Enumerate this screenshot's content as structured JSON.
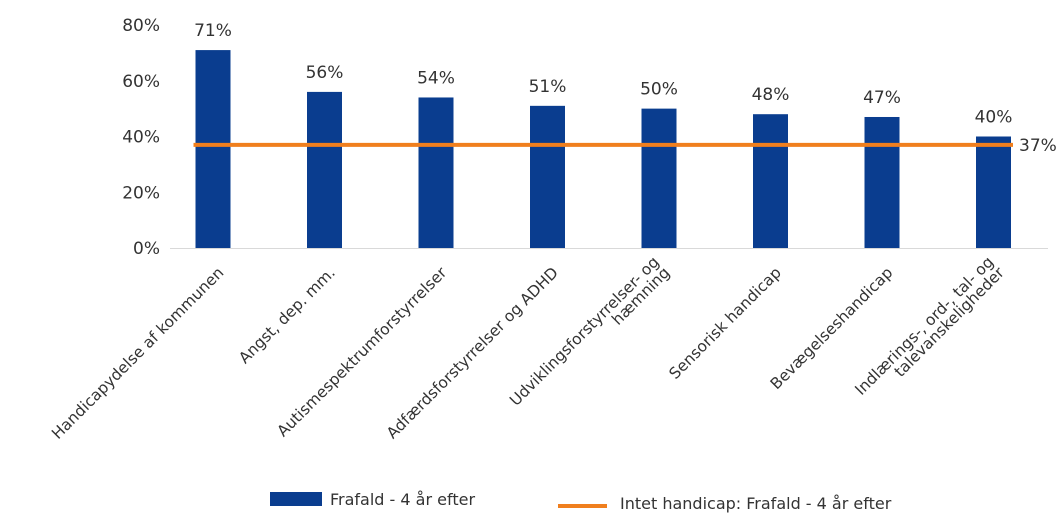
{
  "chart_data": {
    "type": "bar",
    "title": "",
    "xlabel": "",
    "ylabel": "",
    "ylim": [
      0,
      80
    ],
    "y_ticks": [
      "0%",
      "20%",
      "40%",
      "60%",
      "80%"
    ],
    "y_tick_values": [
      0,
      20,
      40,
      60,
      80
    ],
    "grid": false,
    "legend_position": "bottom",
    "categories": [
      [
        "Handicapydelse af kommunen"
      ],
      [
        "Angst, dep. mm."
      ],
      [
        "Autismespektrumforstyrrelser"
      ],
      [
        "Adfærdsforstyrrelser og ADHD"
      ],
      [
        "Udviklingsforstyrrelser- og",
        "hæmning"
      ],
      [
        "Sensorisk handicap"
      ],
      [
        "Bevægelseshandicap"
      ],
      [
        "Indlærings-, ord-, tal- og",
        "talevanskeligheder"
      ]
    ],
    "series": [
      {
        "name": "Frafald - 4 år efter",
        "type": "bar",
        "color": "#0a3d8f",
        "values": [
          71,
          56,
          54,
          51,
          50,
          48,
          47,
          40
        ],
        "data_labels": [
          "71%",
          "56%",
          "54%",
          "51%",
          "50%",
          "48%",
          "47%",
          "40%"
        ]
      },
      {
        "name": "Intet handicap: Frafald - 4 år efter",
        "type": "line",
        "color": "#f07f1e",
        "value": 37,
        "data_label": "37%"
      }
    ]
  }
}
